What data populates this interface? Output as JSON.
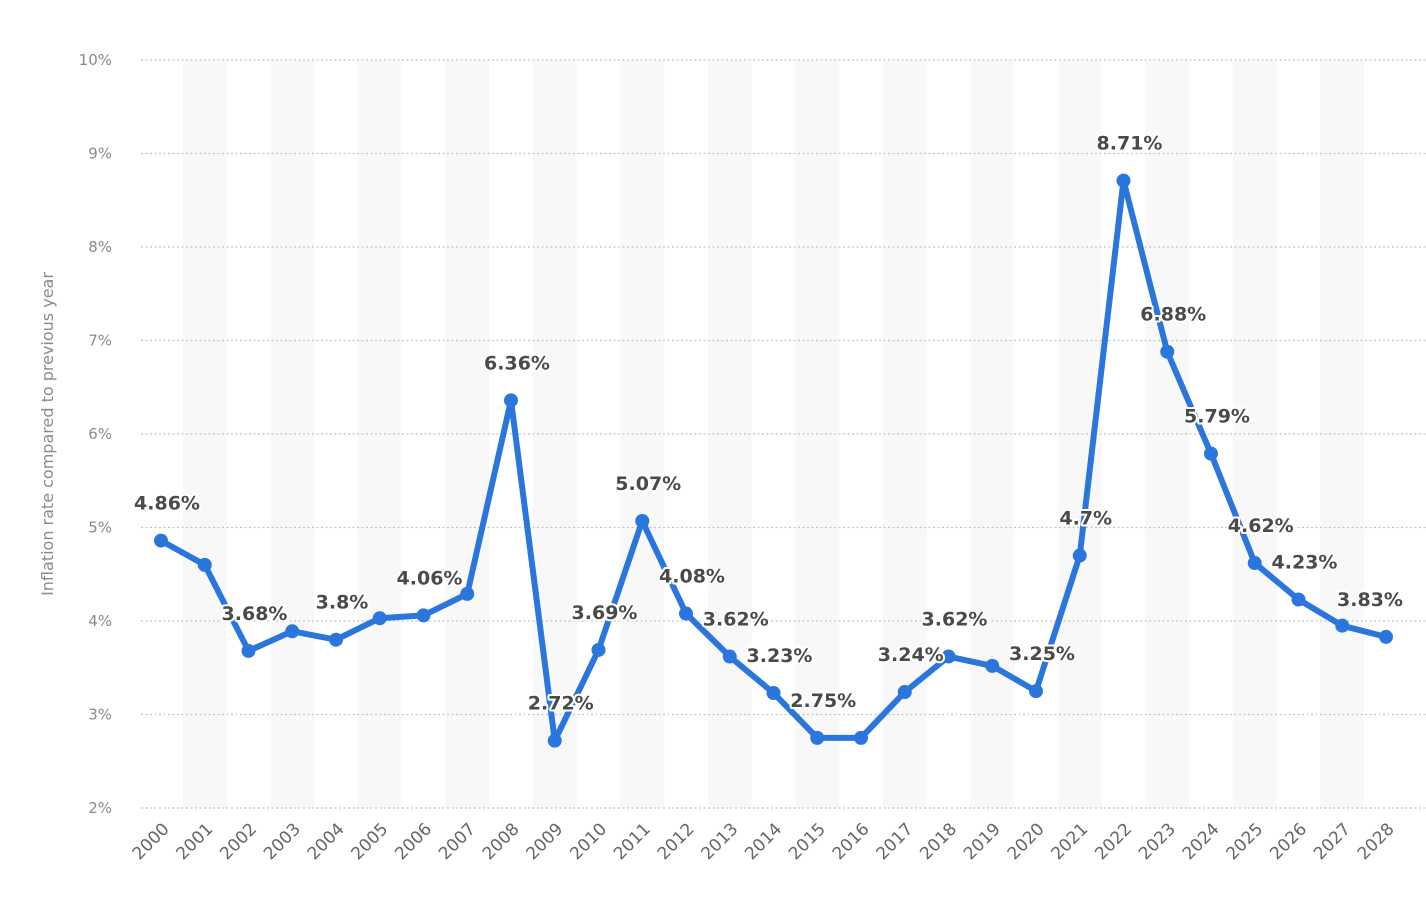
{
  "chart_data": {
    "type": "line",
    "title": "",
    "xlabel": "",
    "ylabel": "Inflation rate compared to previous year",
    "ylim": [
      2,
      10
    ],
    "y_ticks": [
      "2%",
      "3%",
      "4%",
      "5%",
      "6%",
      "7%",
      "8%",
      "9%",
      "10%"
    ],
    "grid": true,
    "x": [
      "2000",
      "2001",
      "2002",
      "2003",
      "2004",
      "2005",
      "2006",
      "2007",
      "2008",
      "2009",
      "2010",
      "2011",
      "2012",
      "2013",
      "2014",
      "2015",
      "2016",
      "2017",
      "2018",
      "2019",
      "2020",
      "2021",
      "2022",
      "2023",
      "2024",
      "2025",
      "2026",
      "2027",
      "2028"
    ],
    "series": [
      {
        "values": [
          4.86,
          4.6,
          3.68,
          3.89,
          3.8,
          4.03,
          4.06,
          4.29,
          6.36,
          2.72,
          3.69,
          5.07,
          4.08,
          3.62,
          3.23,
          2.75,
          2.75,
          3.24,
          3.62,
          3.52,
          3.25,
          4.7,
          8.71,
          6.88,
          5.79,
          4.62,
          4.23,
          3.95,
          3.83
        ],
        "labels": [
          "4.86%",
          null,
          "3.68%",
          null,
          "3.8%",
          null,
          "4.06%",
          null,
          "6.36%",
          "2.72%",
          "3.69%",
          "5.07%",
          "4.08%",
          "3.62%",
          "3.23%",
          "2.75%",
          null,
          "3.24%",
          "3.62%",
          null,
          "3.25%",
          "4.7%",
          "8.71%",
          "6.88%",
          "5.79%",
          "4.62%",
          "4.23%",
          null,
          "3.83%"
        ],
        "color": "#2a76dd"
      }
    ]
  }
}
